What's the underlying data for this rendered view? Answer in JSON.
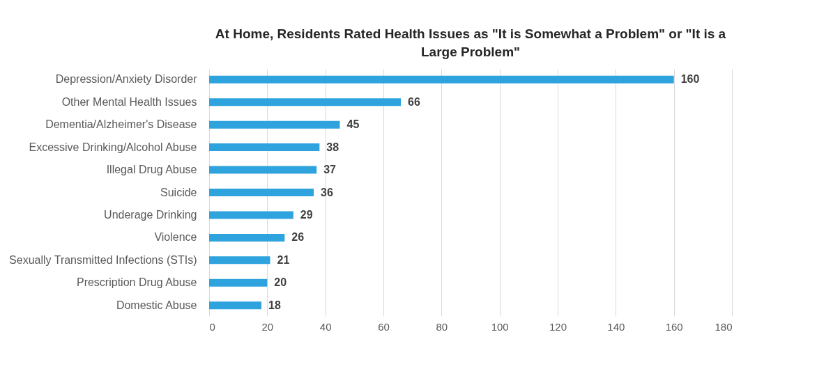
{
  "chart_data": {
    "type": "bar",
    "orientation": "horizontal",
    "title": "At Home, Residents Rated Health Issues as \"It is Somewhat a Problem\" or \"It is a Large Problem\"",
    "categories": [
      "Depression/Anxiety Disorder",
      "Other Mental Health Issues",
      "Dementia/Alzheimer's Disease",
      "Excessive Drinking/Alcohol Abuse",
      "Illegal Drug Abuse",
      "Suicide",
      "Underage Drinking",
      "Violence",
      "Sexually Transmitted Infections (STIs)",
      "Prescription Drug Abuse",
      "Domestic Abuse"
    ],
    "values": [
      160,
      66,
      45,
      38,
      37,
      36,
      29,
      26,
      21,
      20,
      18
    ],
    "color": "#2ea3dd",
    "xlim": [
      0,
      180
    ],
    "xticks": [
      0,
      20,
      40,
      60,
      80,
      100,
      120,
      140,
      160,
      180
    ],
    "grid": "x",
    "data_labels": true
  }
}
